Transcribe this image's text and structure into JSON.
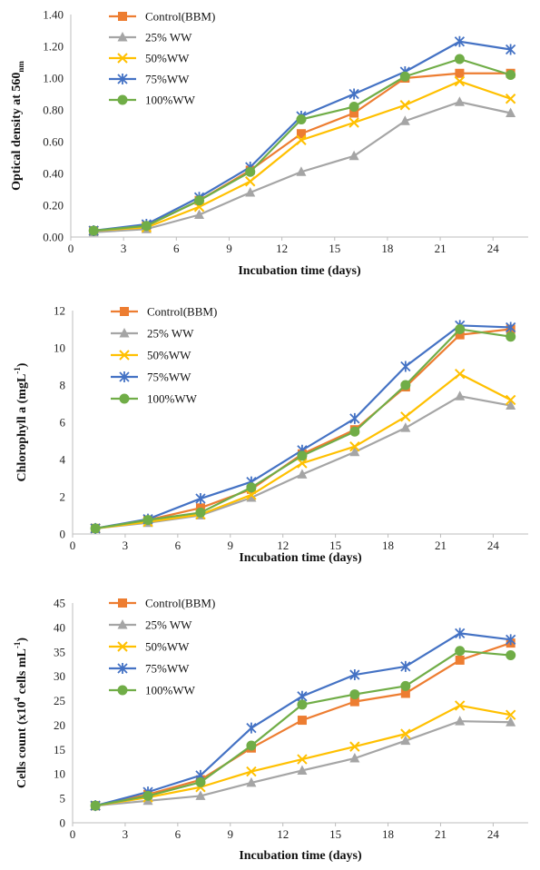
{
  "chart_data": [
    {
      "type": "line",
      "xlabel": "Incubation time (days)",
      "ylabel": {
        "base": "Optical density at 560",
        "sub": "nm",
        "sup": "",
        "tail": ""
      },
      "xlim": [
        0,
        26
      ],
      "xticks": [
        0,
        3,
        6,
        9,
        12,
        15,
        18,
        21,
        24
      ],
      "ylim": [
        0,
        1.4
      ],
      "yticks": [
        0,
        0.2,
        0.4,
        0.6,
        0.8,
        1.0,
        1.2,
        1.4
      ],
      "ytick_decimals": 2,
      "grid": false,
      "legend_position": "top-left",
      "x": [
        1.3,
        4.3,
        7.3,
        10.2,
        13.1,
        16.1,
        19.0,
        22.1,
        25.0
      ],
      "series": [
        {
          "name": "Control(BBM)",
          "color": "#ED7D31",
          "marker": "square",
          "values": [
            0.04,
            0.07,
            0.23,
            0.42,
            0.65,
            0.78,
            1.0,
            1.03,
            1.03
          ]
        },
        {
          "name": "25% WW",
          "color": "#A5A5A5",
          "marker": "triangle",
          "values": [
            0.03,
            0.05,
            0.14,
            0.28,
            0.41,
            0.51,
            0.73,
            0.85,
            0.78
          ]
        },
        {
          "name": "50%WW",
          "color": "#FFC000",
          "marker": "x",
          "values": [
            0.04,
            0.06,
            0.19,
            0.35,
            0.61,
            0.72,
            0.83,
            0.98,
            0.87
          ]
        },
        {
          "name": "75%WW",
          "color": "#4472C4",
          "marker": "star",
          "values": [
            0.04,
            0.08,
            0.25,
            0.44,
            0.76,
            0.9,
            1.04,
            1.23,
            1.18
          ]
        },
        {
          "name": "100%WW",
          "color": "#70AD47",
          "marker": "circle",
          "values": [
            0.04,
            0.07,
            0.23,
            0.41,
            0.74,
            0.82,
            1.01,
            1.12,
            1.02
          ]
        }
      ]
    },
    {
      "type": "line",
      "xlabel": "Incubation time (days)",
      "ylabel": {
        "base": "Chlorophyll a (mgL",
        "sub": "",
        "sup": "-1",
        "tail": ")"
      },
      "xlim": [
        0,
        26
      ],
      "xticks": [
        0,
        3,
        6,
        9,
        12,
        15,
        18,
        21,
        24
      ],
      "ylim": [
        0,
        12
      ],
      "yticks": [
        0,
        2,
        4,
        6,
        8,
        10,
        12
      ],
      "ytick_decimals": 0,
      "grid": false,
      "legend_position": "top-left",
      "x": [
        1.3,
        4.3,
        7.3,
        10.2,
        13.1,
        16.1,
        19.0,
        22.1,
        25.0
      ],
      "series": [
        {
          "name": "Control(BBM)",
          "color": "#ED7D31",
          "marker": "square",
          "values": [
            0.3,
            0.75,
            1.4,
            2.4,
            4.3,
            5.6,
            7.9,
            10.7,
            11.0
          ]
        },
        {
          "name": "25% WW",
          "color": "#A5A5A5",
          "marker": "triangle",
          "values": [
            0.3,
            0.6,
            1.0,
            1.95,
            3.2,
            4.4,
            5.7,
            7.4,
            6.9
          ]
        },
        {
          "name": "50%WW",
          "color": "#FFC000",
          "marker": "x",
          "values": [
            0.3,
            0.65,
            1.05,
            2.1,
            3.8,
            4.7,
            6.3,
            8.6,
            7.2
          ]
        },
        {
          "name": "75%WW",
          "color": "#4472C4",
          "marker": "star",
          "values": [
            0.3,
            0.8,
            1.9,
            2.8,
            4.5,
            6.2,
            9.0,
            11.2,
            11.1
          ]
        },
        {
          "name": "100%WW",
          "color": "#70AD47",
          "marker": "circle",
          "values": [
            0.3,
            0.75,
            1.15,
            2.5,
            4.2,
            5.5,
            8.0,
            11.0,
            10.6
          ]
        }
      ]
    },
    {
      "type": "line",
      "xlabel": "Incubation time (days)",
      "ylabel": {
        "base": "Cells count (x10",
        "sub": "",
        "sup": "4",
        "tail": " cells mL",
        "sup2": "-1",
        "tail2": ")"
      },
      "xlim": [
        0,
        26
      ],
      "xticks": [
        0,
        3,
        6,
        9,
        12,
        15,
        18,
        21,
        24
      ],
      "ylim": [
        0,
        45
      ],
      "yticks": [
        0,
        5,
        10,
        15,
        20,
        25,
        30,
        35,
        40,
        45
      ],
      "ytick_decimals": 0,
      "grid": false,
      "legend_position": "top-left",
      "x": [
        1.3,
        4.3,
        7.3,
        10.2,
        13.1,
        16.1,
        19.0,
        22.1,
        25.0
      ],
      "series": [
        {
          "name": "Control(BBM)",
          "color": "#ED7D31",
          "marker": "square",
          "values": [
            3.5,
            5.8,
            8.8,
            15.3,
            21.0,
            24.8,
            26.5,
            33.3,
            36.8
          ]
        },
        {
          "name": "25% WW",
          "color": "#A5A5A5",
          "marker": "triangle",
          "values": [
            3.5,
            4.5,
            5.5,
            8.2,
            10.7,
            13.2,
            16.8,
            20.8,
            20.6
          ]
        },
        {
          "name": "50%WW",
          "color": "#FFC000",
          "marker": "x",
          "values": [
            3.5,
            5.2,
            7.3,
            10.5,
            13.0,
            15.6,
            18.2,
            24.0,
            22.1
          ]
        },
        {
          "name": "75%WW",
          "color": "#4472C4",
          "marker": "star",
          "values": [
            3.5,
            6.3,
            9.7,
            19.4,
            25.9,
            30.3,
            32.0,
            38.8,
            37.5
          ]
        },
        {
          "name": "100%WW",
          "color": "#70AD47",
          "marker": "circle",
          "values": [
            3.5,
            5.5,
            8.3,
            15.8,
            24.2,
            26.3,
            28.0,
            35.2,
            34.3
          ]
        }
      ]
    }
  ]
}
